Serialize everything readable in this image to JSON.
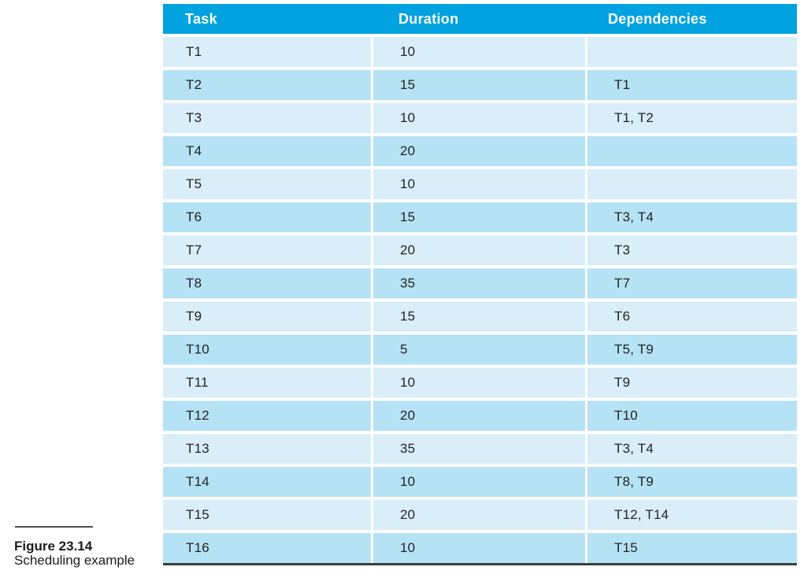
{
  "figure": {
    "label": "Figure 23.14",
    "caption": "Scheduling example"
  },
  "table": {
    "columns": [
      "Task",
      "Duration",
      "Dependencies"
    ],
    "rows": [
      {
        "task": "T1",
        "duration": "10",
        "dependencies": ""
      },
      {
        "task": "T2",
        "duration": "15",
        "dependencies": "T1"
      },
      {
        "task": "T3",
        "duration": "10",
        "dependencies": "T1, T2"
      },
      {
        "task": "T4",
        "duration": "20",
        "dependencies": ""
      },
      {
        "task": "T5",
        "duration": "10",
        "dependencies": ""
      },
      {
        "task": "T6",
        "duration": "15",
        "dependencies": "T3, T4"
      },
      {
        "task": "T7",
        "duration": "20",
        "dependencies": "T3"
      },
      {
        "task": "T8",
        "duration": "35",
        "dependencies": "T7"
      },
      {
        "task": "T9",
        "duration": "15",
        "dependencies": "T6"
      },
      {
        "task": "T10",
        "duration": "5",
        "dependencies": "T5, T9"
      },
      {
        "task": "T11",
        "duration": "10",
        "dependencies": "T9"
      },
      {
        "task": "T12",
        "duration": "20",
        "dependencies": "T10"
      },
      {
        "task": "T13",
        "duration": "35",
        "dependencies": "T3, T4"
      },
      {
        "task": "T14",
        "duration": "10",
        "dependencies": "T8, T9"
      },
      {
        "task": "T15",
        "duration": "20",
        "dependencies": "T12, T14"
      },
      {
        "task": "T16",
        "duration": "10",
        "dependencies": "T15"
      }
    ]
  },
  "colors": {
    "header_bg": "#00A3E0",
    "header_text": "#FFFFFF",
    "row_light": "#D9EEF9",
    "row_dark": "#B5E2F5",
    "body_text": "#232323",
    "bottom_rule": "#3E3E3E"
  }
}
